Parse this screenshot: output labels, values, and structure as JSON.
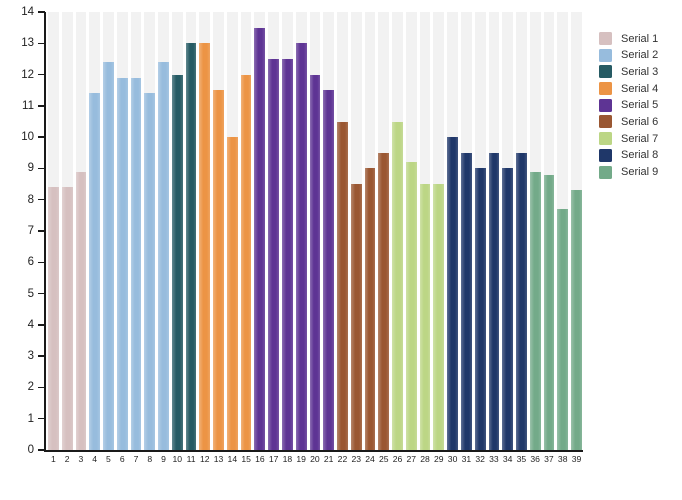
{
  "chart_data": {
    "type": "bar",
    "title": "",
    "xlabel": "",
    "ylabel": "",
    "ylim": [
      0,
      14
    ],
    "yticks": [
      0,
      1,
      2,
      3,
      4,
      5,
      6,
      7,
      8,
      9,
      10,
      11,
      12,
      13,
      14
    ],
    "grid": "category-background-stripes",
    "stripe_color": "#f2f2f2",
    "axis_color": "#1a1a1a",
    "legend_position": "right",
    "categories": [
      "1",
      "2",
      "3",
      "4",
      "5",
      "6",
      "7",
      "8",
      "9",
      "10",
      "11",
      "12",
      "13",
      "14",
      "15",
      "16",
      "17",
      "18",
      "19",
      "20",
      "21",
      "22",
      "23",
      "24",
      "25",
      "26",
      "27",
      "28",
      "29",
      "30",
      "31",
      "32",
      "33",
      "34",
      "35",
      "36",
      "37",
      "38",
      "39"
    ],
    "series": [
      {
        "name": "Serial 1",
        "color": "#d6c0c0",
        "categories": [
          "1",
          "2",
          "3"
        ],
        "values": [
          8.4,
          8.4,
          8.9
        ]
      },
      {
        "name": "Serial 2",
        "color": "#97bcdd",
        "categories": [
          "4",
          "5",
          "6",
          "7",
          "8",
          "9"
        ],
        "values": [
          11.4,
          12.4,
          11.9,
          11.9,
          11.4,
          12.4
        ]
      },
      {
        "name": "Serial 3",
        "color": "#265b64",
        "categories": [
          "10",
          "11"
        ],
        "values": [
          12.0,
          13.0
        ]
      },
      {
        "name": "Serial 4",
        "color": "#ec9445",
        "categories": [
          "12",
          "13",
          "14",
          "15"
        ],
        "values": [
          13.0,
          11.5,
          10.0,
          12.0
        ]
      },
      {
        "name": "Serial 5",
        "color": "#5e3494",
        "categories": [
          "16",
          "17",
          "18",
          "19",
          "20",
          "21"
        ],
        "values": [
          13.5,
          12.5,
          12.5,
          13.0,
          12.0,
          11.5
        ]
      },
      {
        "name": "Serial 6",
        "color": "#9a5732",
        "categories": [
          "22",
          "23",
          "24",
          "25"
        ],
        "values": [
          10.5,
          8.5,
          9.0,
          9.5
        ]
      },
      {
        "name": "Serial 7",
        "color": "#bcd685",
        "categories": [
          "26",
          "27",
          "28",
          "29"
        ],
        "values": [
          10.5,
          9.2,
          8.5,
          8.5
        ]
      },
      {
        "name": "Serial 8",
        "color": "#1f3769",
        "categories": [
          "30",
          "31",
          "32",
          "33",
          "34",
          "35"
        ],
        "values": [
          10.0,
          9.5,
          9.0,
          9.5,
          9.0,
          9.5
        ]
      },
      {
        "name": "Serial 9",
        "color": "#73aa89",
        "categories": [
          "36",
          "37",
          "38",
          "39"
        ],
        "values": [
          8.9,
          8.8,
          7.7,
          8.3
        ]
      }
    ],
    "legend": [
      {
        "label": "Serial 1",
        "color": "#d6c0c0"
      },
      {
        "label": "Serial 2",
        "color": "#97bcdd"
      },
      {
        "label": "Serial 3",
        "color": "#265b64"
      },
      {
        "label": "Serial 4",
        "color": "#ec9445"
      },
      {
        "label": "Serial 5",
        "color": "#5e3494"
      },
      {
        "label": "Serial 6",
        "color": "#9a5732"
      },
      {
        "label": "Serial 7",
        "color": "#bcd685"
      },
      {
        "label": "Serial 8",
        "color": "#1f3769"
      },
      {
        "label": "Serial 9",
        "color": "#73aa89"
      }
    ]
  }
}
